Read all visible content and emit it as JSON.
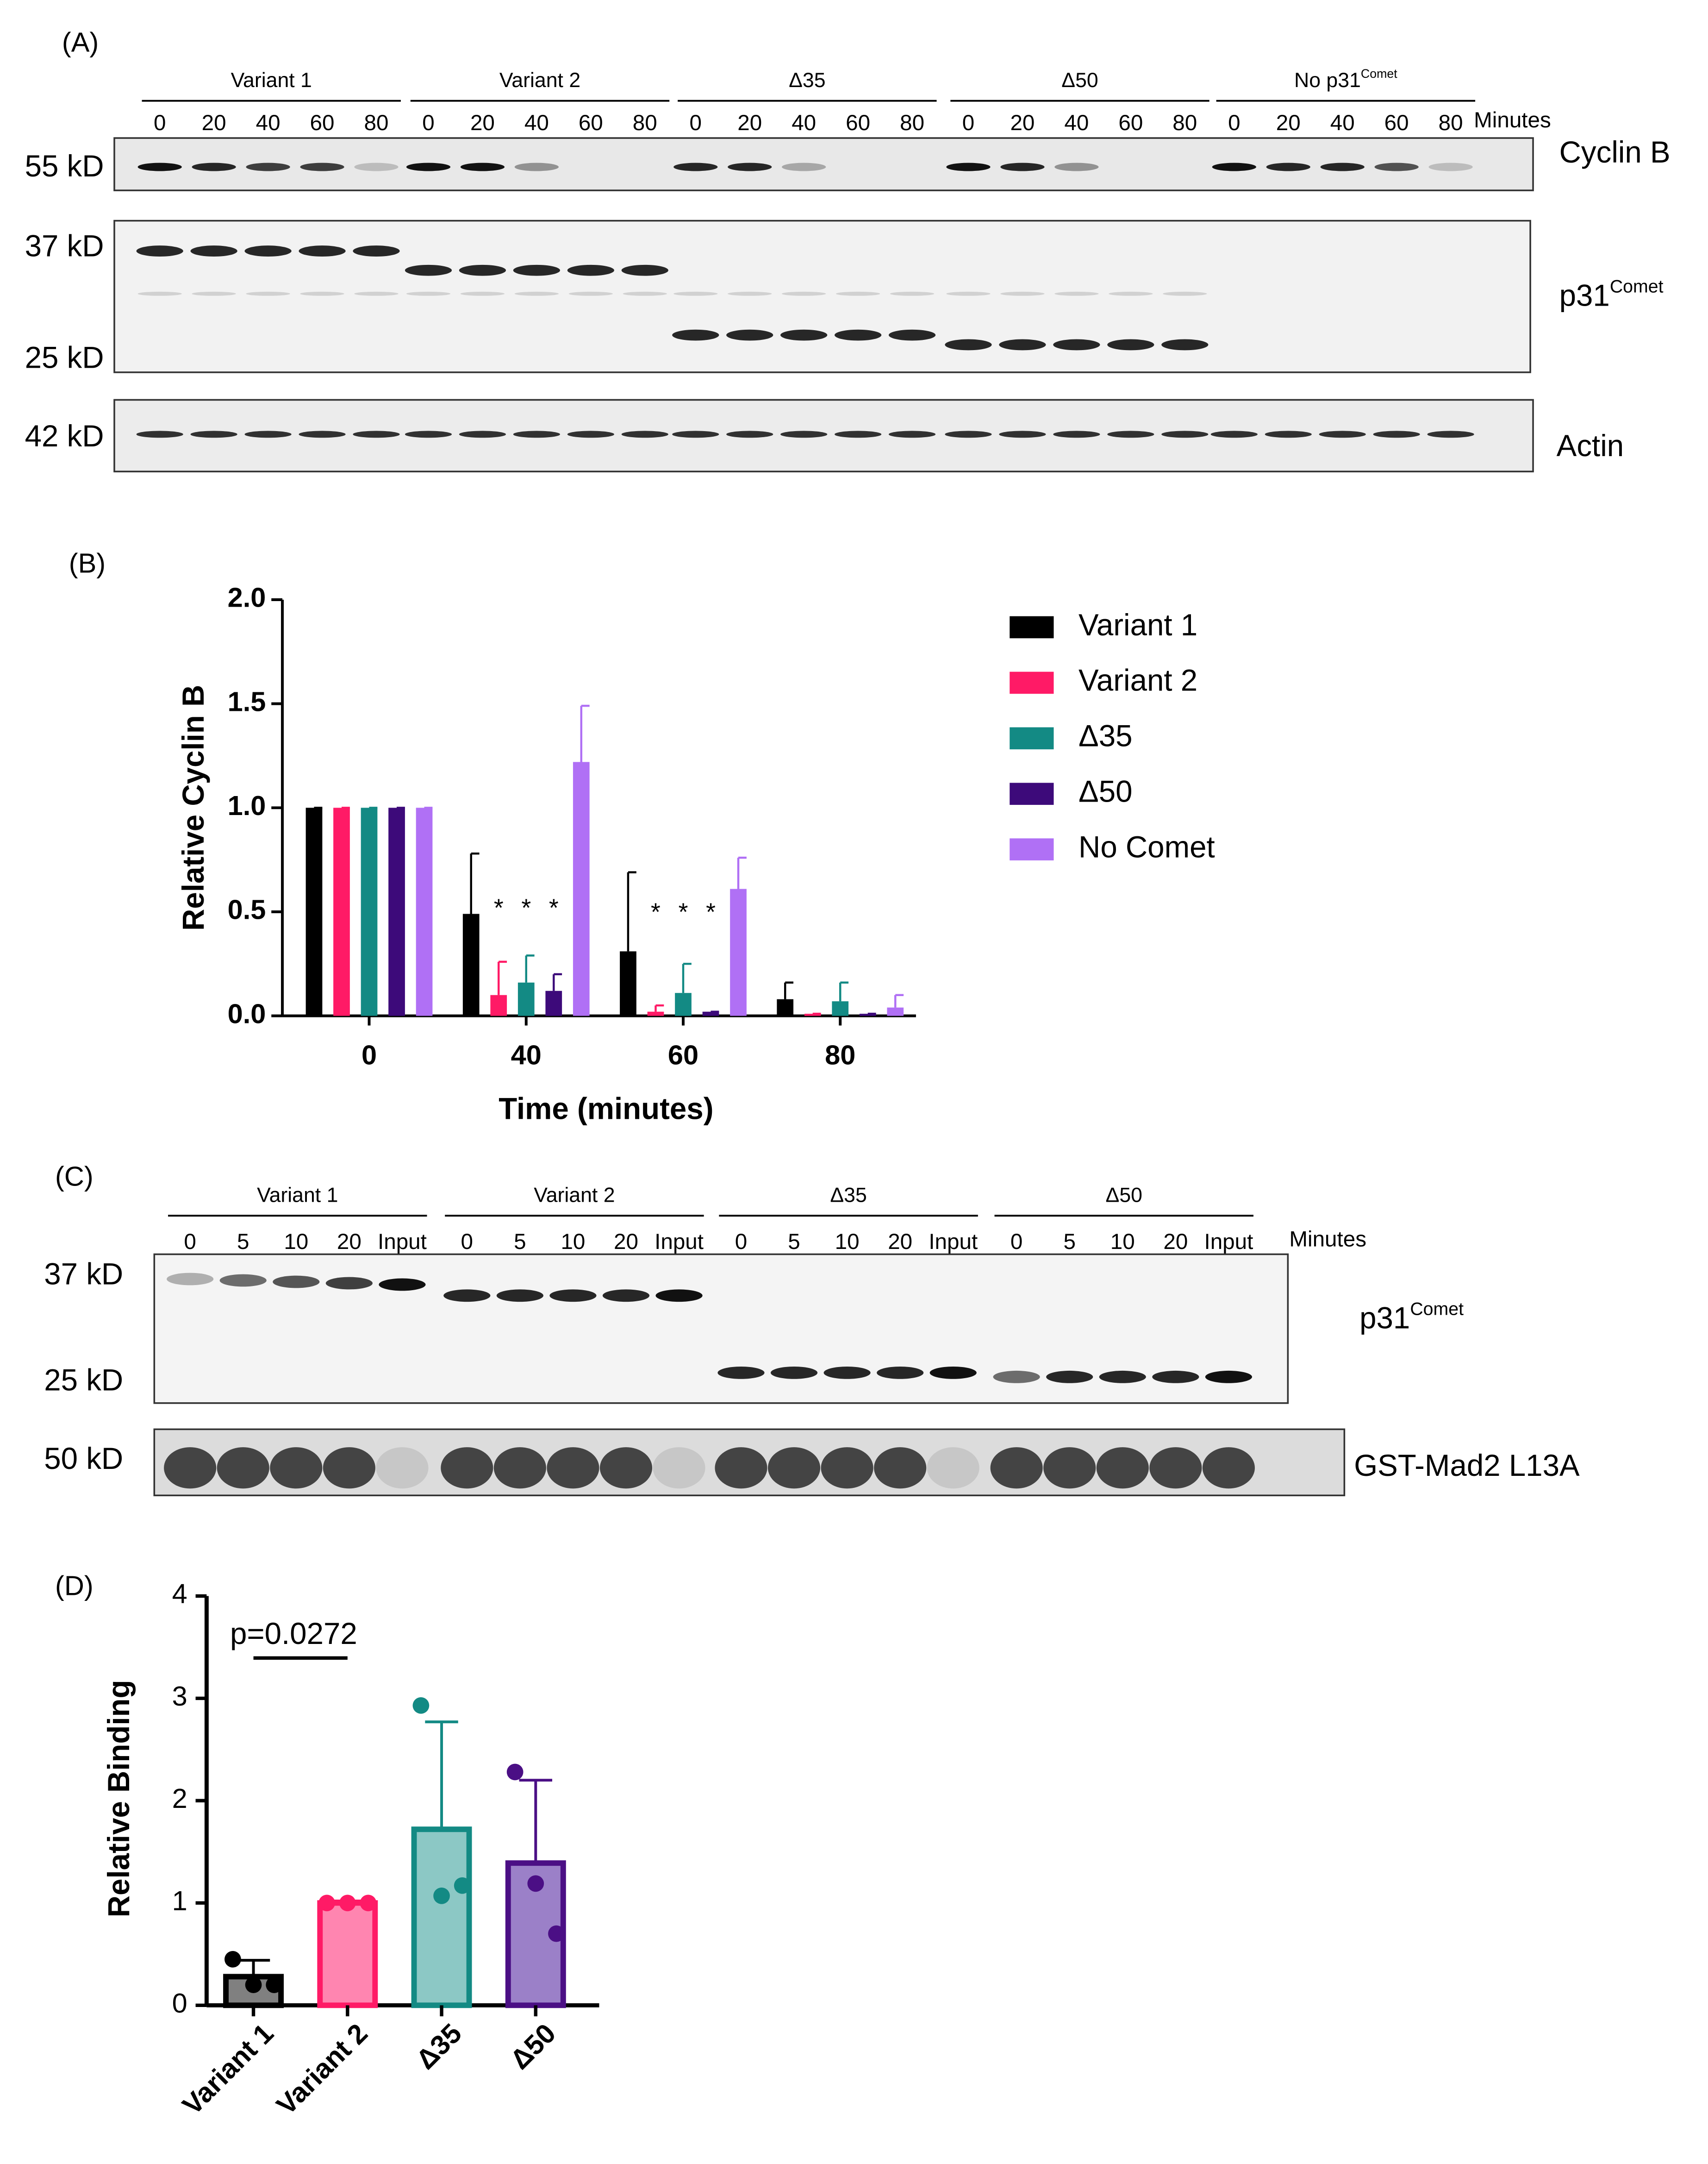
{
  "panel_labels": [
    "(A)",
    "(B)",
    "(C)",
    "(D)"
  ],
  "blot_a": {
    "groups": [
      "Variant 1",
      "Variant 2",
      "Δ35",
      "Δ50",
      {
        "text": "No p31",
        "sup": "Comet"
      }
    ],
    "lanes": [
      "0",
      "20",
      "40",
      "60",
      "80"
    ],
    "unit": "Minutes",
    "rows": [
      {
        "markers": [
          "55 kD"
        ],
        "label": "Cyclin B"
      },
      {
        "markers": [
          "37 kD",
          "25 kD"
        ],
        "label": {
          "text": "p31",
          "sup": "Comet"
        }
      },
      {
        "markers": [
          "42 kD"
        ],
        "label": "Actin"
      }
    ]
  },
  "blot_c": {
    "groups": [
      "Variant 1",
      "Variant 2",
      "Δ35",
      "Δ50"
    ],
    "lanes": [
      "0",
      "5",
      "10",
      "20",
      "Input"
    ],
    "unit": "Minutes",
    "rows": [
      {
        "markers": [
          "37 kD",
          "25 kD"
        ],
        "label": {
          "text": "p31",
          "sup": "Comet"
        }
      },
      {
        "markers": [
          "50 kD"
        ],
        "label": "GST-Mad2 L13A"
      }
    ]
  },
  "chart_data": [
    {
      "type": "grouped_bar",
      "xlabel": "Time (minutes)",
      "ylabel": "Relative Cyclin B",
      "categories": [
        "0",
        "40",
        "60",
        "80"
      ],
      "ylim": [
        0,
        2
      ],
      "yticks": [
        {
          "value": 0,
          "label": "0.0"
        },
        {
          "value": 0.5,
          "label": "0.5"
        },
        {
          "value": 1,
          "label": "1.0"
        },
        {
          "value": 1.5,
          "label": "1.5"
        },
        {
          "value": 2,
          "label": "2.0"
        }
      ],
      "legend": "right",
      "series": [
        {
          "name": "Variant 1",
          "color": "#000000",
          "values": [
            1,
            0.49,
            0.31,
            0.08
          ],
          "errors": [
            0,
            0.29,
            0.38,
            0.08
          ]
        },
        {
          "name": "Variant 2",
          "color": "#ff1a66",
          "values": [
            1,
            0.1,
            0.02,
            0.01
          ],
          "errors": [
            0,
            0.16,
            0.03,
            0
          ]
        },
        {
          "name": "Δ35",
          "color": "#138a84",
          "values": [
            1,
            0.16,
            0.11,
            0.07
          ],
          "errors": [
            0,
            0.13,
            0.14,
            0.09
          ]
        },
        {
          "name": "Δ50",
          "color": "#3d0a7a",
          "values": [
            1,
            0.12,
            0.02,
            0.01
          ],
          "errors": [
            0,
            0.08,
            0,
            0
          ]
        },
        {
          "name": "No Comet",
          "color": "#b070f5",
          "values": [
            1,
            1.22,
            0.61,
            0.04
          ],
          "errors": [
            0,
            0.27,
            0.15,
            0.06
          ]
        }
      ],
      "annotations": [
        {
          "text": "*",
          "category": 1,
          "series": 1
        },
        {
          "text": "*",
          "category": 1,
          "series": 2
        },
        {
          "text": "*",
          "category": 1,
          "series": 3
        },
        {
          "text": "*",
          "category": 2,
          "series": 1
        },
        {
          "text": "*",
          "category": 2,
          "series": 2
        },
        {
          "text": "*",
          "category": 2,
          "series": 3
        }
      ]
    },
    {
      "type": "bar_points",
      "ylabel": "Relative Binding",
      "categories": [
        "Variant 1",
        "Variant 2",
        "Δ35",
        "Δ50"
      ],
      "values": [
        0.28,
        1.0,
        1.72,
        1.39
      ],
      "errors": [
        0.16,
        0.02,
        1.05,
        0.81
      ],
      "points": [
        [
          0.45,
          0.2,
          0.2
        ],
        [
          1,
          1,
          1
        ],
        [
          2.93,
          1.07,
          1.17
        ],
        [
          2.28,
          1.19,
          0.7
        ]
      ],
      "fills": [
        "#808080",
        "#ff85b0",
        "#8cc8c5",
        "#9b80c8"
      ],
      "colors": [
        "#000000",
        "#ff1a66",
        "#138a84",
        "#4b0f85"
      ],
      "ylim": [
        0,
        4
      ],
      "yticks": [
        0,
        1,
        2,
        3,
        4
      ],
      "annotations": [
        {
          "text": "p=0.0272",
          "from": 0,
          "to": 1
        }
      ]
    }
  ]
}
